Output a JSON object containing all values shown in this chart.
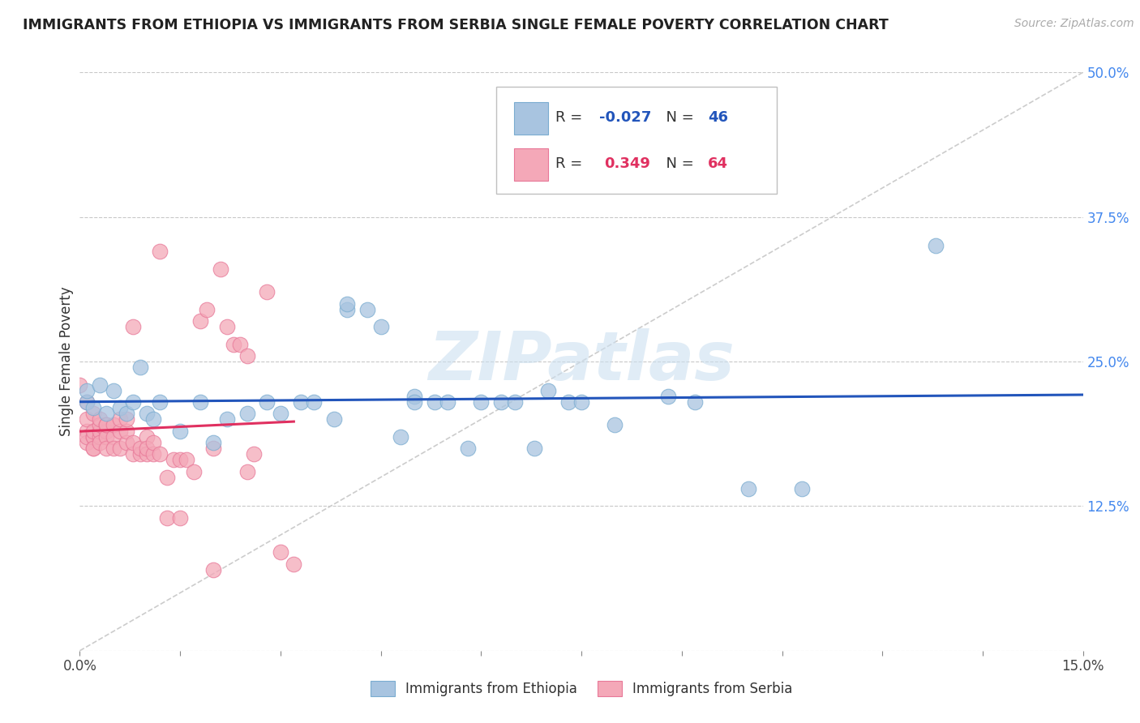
{
  "title": "IMMIGRANTS FROM ETHIOPIA VS IMMIGRANTS FROM SERBIA SINGLE FEMALE POVERTY CORRELATION CHART",
  "source": "Source: ZipAtlas.com",
  "ylabel": "Single Female Poverty",
  "xlim": [
    0.0,
    0.15
  ],
  "ylim": [
    0.0,
    0.5
  ],
  "background_color": "#ffffff",
  "grid_color": "#c8c8c8",
  "watermark": "ZIPatlas",
  "legend_r_ethiopia": "-0.027",
  "legend_n_ethiopia": "46",
  "legend_r_serbia": "0.349",
  "legend_n_serbia": "64",
  "ethiopia_color": "#a8c4e0",
  "ethiopia_edge_color": "#7aacd0",
  "serbia_color": "#f4a8b8",
  "serbia_edge_color": "#e87898",
  "ethiopia_line_color": "#2255bb",
  "serbia_line_color": "#e03060",
  "diag_line_color": "#cccccc",
  "ethiopia_points_x": [
    0.001,
    0.001,
    0.002,
    0.003,
    0.004,
    0.005,
    0.006,
    0.007,
    0.008,
    0.009,
    0.01,
    0.011,
    0.012,
    0.015,
    0.018,
    0.02,
    0.022,
    0.025,
    0.028,
    0.03,
    0.033,
    0.035,
    0.038,
    0.04,
    0.04,
    0.043,
    0.045,
    0.048,
    0.05,
    0.05,
    0.053,
    0.055,
    0.058,
    0.06,
    0.063,
    0.065,
    0.068,
    0.07,
    0.073,
    0.075,
    0.08,
    0.088,
    0.092,
    0.1,
    0.108,
    0.128
  ],
  "ethiopia_points_y": [
    0.215,
    0.225,
    0.21,
    0.23,
    0.205,
    0.225,
    0.21,
    0.205,
    0.215,
    0.245,
    0.205,
    0.2,
    0.215,
    0.19,
    0.215,
    0.18,
    0.2,
    0.205,
    0.215,
    0.205,
    0.215,
    0.215,
    0.2,
    0.295,
    0.3,
    0.295,
    0.28,
    0.185,
    0.22,
    0.215,
    0.215,
    0.215,
    0.175,
    0.215,
    0.215,
    0.215,
    0.175,
    0.225,
    0.215,
    0.215,
    0.195,
    0.22,
    0.215,
    0.14,
    0.14,
    0.35
  ],
  "serbia_points_x": [
    0.0,
    0.001,
    0.001,
    0.001,
    0.001,
    0.001,
    0.002,
    0.002,
    0.002,
    0.002,
    0.002,
    0.002,
    0.003,
    0.003,
    0.003,
    0.003,
    0.003,
    0.004,
    0.004,
    0.004,
    0.004,
    0.004,
    0.005,
    0.005,
    0.005,
    0.006,
    0.006,
    0.006,
    0.007,
    0.007,
    0.007,
    0.008,
    0.008,
    0.008,
    0.009,
    0.009,
    0.01,
    0.01,
    0.01,
    0.011,
    0.011,
    0.012,
    0.012,
    0.013,
    0.013,
    0.014,
    0.015,
    0.015,
    0.016,
    0.017,
    0.018,
    0.019,
    0.02,
    0.02,
    0.021,
    0.022,
    0.023,
    0.024,
    0.025,
    0.025,
    0.026,
    0.028,
    0.03,
    0.032
  ],
  "serbia_points_y": [
    0.23,
    0.19,
    0.18,
    0.185,
    0.2,
    0.215,
    0.185,
    0.175,
    0.205,
    0.185,
    0.19,
    0.175,
    0.185,
    0.19,
    0.195,
    0.18,
    0.2,
    0.19,
    0.185,
    0.195,
    0.175,
    0.195,
    0.185,
    0.195,
    0.175,
    0.175,
    0.19,
    0.2,
    0.18,
    0.19,
    0.2,
    0.17,
    0.18,
    0.28,
    0.17,
    0.175,
    0.17,
    0.185,
    0.175,
    0.17,
    0.18,
    0.17,
    0.345,
    0.115,
    0.15,
    0.165,
    0.115,
    0.165,
    0.165,
    0.155,
    0.285,
    0.295,
    0.175,
    0.07,
    0.33,
    0.28,
    0.265,
    0.265,
    0.255,
    0.155,
    0.17,
    0.31,
    0.085,
    0.075
  ]
}
